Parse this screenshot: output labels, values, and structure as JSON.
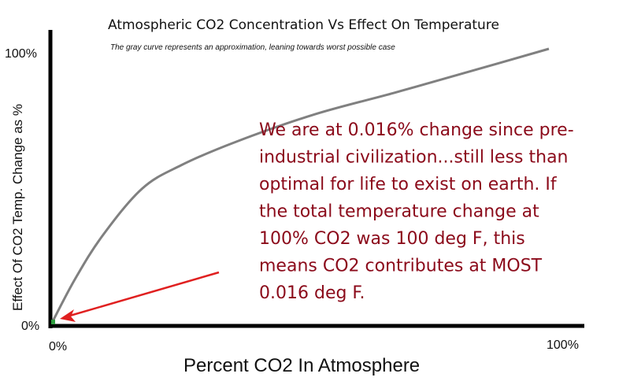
{
  "chart_data": {
    "type": "line",
    "title": "Atmospheric CO2 Concentration Vs Effect On Temperature",
    "subtitle": "The gray curve represents an  approximation, leaning towards worst possible case",
    "xlabel": "Percent CO2 In Atmosphere",
    "ylabel": "Effect Of CO2 Temp. Change as %",
    "xlim": [
      0,
      100
    ],
    "ylim": [
      0,
      100
    ],
    "x_ticks": [
      "0%",
      "100%"
    ],
    "y_ticks": [
      "0%",
      "100%"
    ],
    "grid": false,
    "series": [
      {
        "color": "#808080",
        "x": [
          0,
          4.6,
          10.1,
          18.1,
          26,
          37.1,
          52.9,
          68.8,
          84.6,
          100
        ],
        "y": [
          0,
          15.8,
          31.6,
          48.9,
          57.5,
          66.1,
          76.1,
          83.9,
          92,
          100
        ]
      }
    ],
    "marker": {
      "x": 0.016,
      "y": 0.016,
      "color": "#2e9e3e"
    },
    "annotation": {
      "color": "#8b0a1a",
      "arrow_color": "#e02020",
      "lines": [
        "We are at 0.016% change since pre-",
        "industrial civilization...still less than",
        "optimal for life to exist on earth.  If",
        "the total temperature change at",
        "100% CO2 was 100 deg F, this",
        "means CO2 contributes at MOST",
        "0.016 deg F."
      ]
    }
  }
}
